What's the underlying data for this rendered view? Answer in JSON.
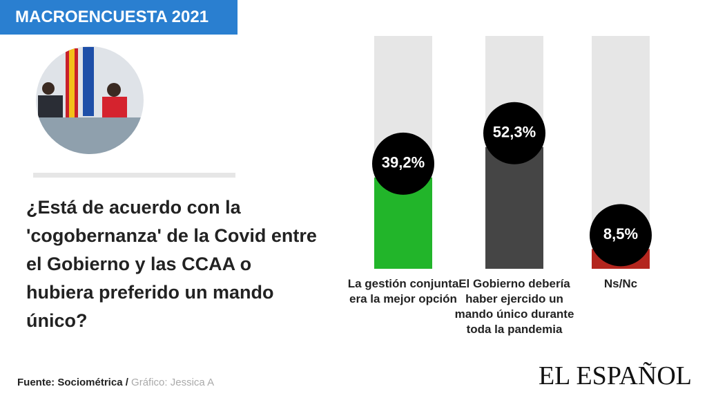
{
  "header": {
    "badge": "MACROENCUESTA 2021"
  },
  "question": "¿Está de acuerdo con la 'cogobernanza' de la Covid entre el Gobierno y las CCAA o hubiera preferido un mando único?",
  "chart_data": {
    "type": "bar",
    "categories": [
      "La gestión conjunta era la mejor opción",
      "El Gobierno debería haber ejercido un mando único durante toda la pandemia",
      "Ns/Nc"
    ],
    "values": [
      39.2,
      52.3,
      8.5
    ],
    "value_labels": [
      "39,2%",
      "52,3%",
      "8,5%"
    ],
    "colors": [
      "#22b52a",
      "#454545",
      "#b3261e"
    ],
    "ylim": [
      0,
      100
    ]
  },
  "footer": {
    "source": "Fuente: Sociométrica /",
    "credit": "Gráfico: Jessica A",
    "brand": "EL ESPAÑOL"
  }
}
